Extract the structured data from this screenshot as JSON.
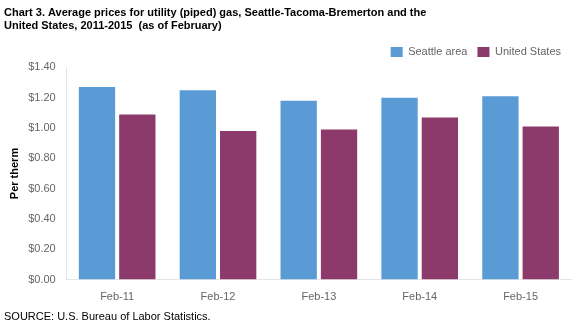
{
  "chart_data": {
    "type": "bar",
    "title": [
      "Chart 3. Average prices for utility (piped) gas, Seattle-Tacoma-Bremerton and the",
      "United States, 2011-2015  (as of February)"
    ],
    "ylabel": "Per therm",
    "annotations": [
      "SOURCE: U.S. Bureau of Labor Statistics."
    ],
    "categories": [
      "Feb-11",
      "Feb-12",
      "Feb-13",
      "Feb-14",
      "Feb-15"
    ],
    "series": [
      {
        "name": "Seattle area",
        "color": "#5B9BD5",
        "values": [
          1.27,
          1.25,
          1.18,
          1.2,
          1.21
        ]
      },
      {
        "name": "United States",
        "color": "#8B3A6B",
        "values": [
          1.09,
          0.98,
          0.99,
          1.07,
          1.01
        ]
      }
    ],
    "ylim": [
      0.0,
      1.4
    ],
    "yticks": [
      {
        "value": 0.0,
        "label": "$0.00"
      },
      {
        "value": 0.2,
        "label": "$0.20"
      },
      {
        "value": 0.4,
        "label": "$0.40"
      },
      {
        "value": 0.6,
        "label": "$0.60"
      },
      {
        "value": 0.8,
        "label": "$0.80"
      },
      {
        "value": 1.0,
        "label": "$1.00"
      },
      {
        "value": 1.2,
        "label": "$1.20"
      },
      {
        "value": 1.4,
        "label": "$1.40"
      }
    ],
    "grid": false,
    "legend": "upper right"
  }
}
